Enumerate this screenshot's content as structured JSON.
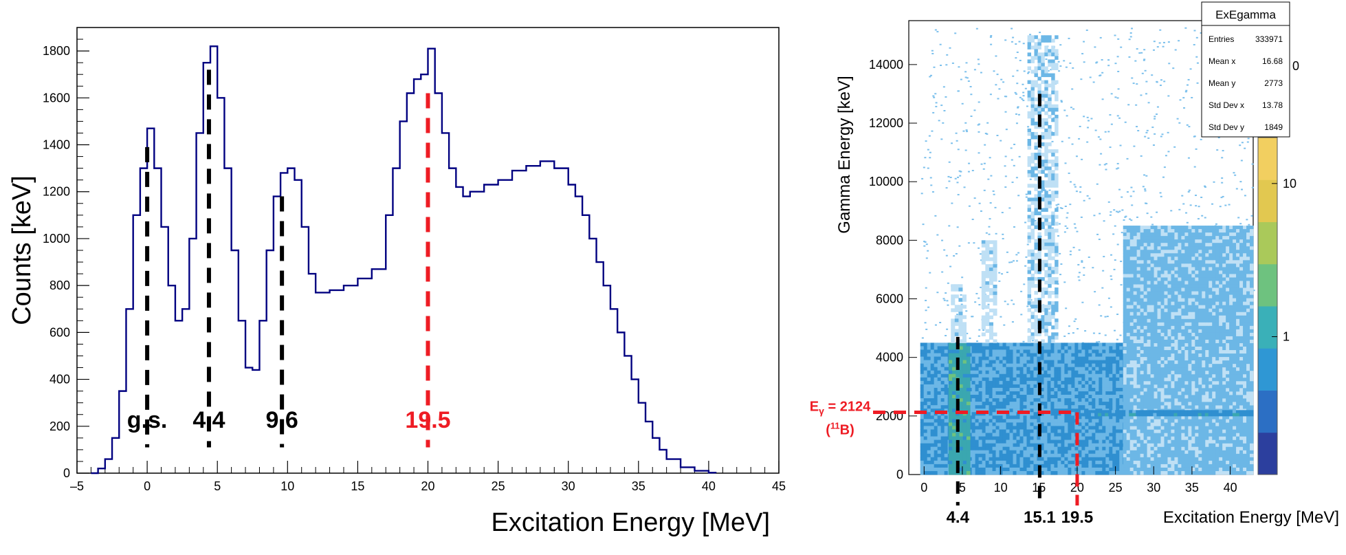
{
  "chart_data": [
    {
      "type": "line",
      "title": "",
      "xlabel": "Excitation Energy [MeV]",
      "ylabel": "Counts [keV]",
      "xlim": [
        -5,
        45
      ],
      "ylim": [
        0,
        1900
      ],
      "xticks": [
        -5,
        0,
        5,
        10,
        15,
        20,
        25,
        30,
        35,
        40,
        45
      ],
      "xtick_labels": [
        "–5",
        "0",
        "5",
        "10",
        "15",
        "20",
        "25",
        "30",
        "35",
        "40",
        "45"
      ],
      "yticks": [
        0,
        200,
        400,
        600,
        800,
        1000,
        1200,
        1400,
        1600,
        1800
      ],
      "grid": false,
      "line_color": "#000080",
      "series": [
        {
          "x": [
            -4.0,
            -3.5,
            -3.0,
            -2.5,
            -2.0,
            -1.5,
            -1.0,
            -0.5,
            0.0,
            0.5,
            1.0,
            1.5,
            2.0,
            2.5,
            3.0,
            3.5,
            4.0,
            4.5,
            5.0,
            5.5,
            6.0,
            6.5,
            7.0,
            7.5,
            8.0,
            8.5,
            9.0,
            9.5,
            10.0,
            10.5,
            11.0,
            11.5,
            12.0,
            13.0,
            14.0,
            15.0,
            16.0,
            17.0,
            17.5,
            18.0,
            18.5,
            19.0,
            19.5,
            20.0,
            20.5,
            21.0,
            21.5,
            22.0,
            22.5,
            23.0,
            24.0,
            25.0,
            26.0,
            27.0,
            28.0,
            29.0,
            30.0,
            30.5,
            31.0,
            31.5,
            32.0,
            32.5,
            33.0,
            33.5,
            34.0,
            34.5,
            35.0,
            35.5,
            36.0,
            36.5,
            37.0,
            38.0,
            39.0,
            40.0,
            40.5
          ],
          "y": [
            0,
            20,
            60,
            150,
            350,
            700,
            1100,
            1300,
            1470,
            1300,
            1050,
            800,
            650,
            700,
            1000,
            1450,
            1750,
            1820,
            1600,
            1300,
            950,
            650,
            450,
            440,
            650,
            950,
            1180,
            1280,
            1300,
            1250,
            1050,
            850,
            770,
            780,
            800,
            830,
            870,
            1100,
            1300,
            1500,
            1620,
            1680,
            1700,
            1810,
            1620,
            1450,
            1300,
            1220,
            1180,
            1200,
            1230,
            1250,
            1290,
            1310,
            1330,
            1300,
            1230,
            1180,
            1100,
            1000,
            900,
            800,
            700,
            600,
            500,
            400,
            300,
            220,
            150,
            100,
            60,
            25,
            10,
            2,
            0
          ]
        }
      ],
      "markers": [
        {
          "x": 0.0,
          "y_top": 1390,
          "label": "g.s.",
          "color": "#000000"
        },
        {
          "x": 4.4,
          "y_top": 1720,
          "label": "4.4",
          "color": "#000000"
        },
        {
          "x": 9.6,
          "y_top": 1180,
          "label": "9.6",
          "color": "#000000"
        },
        {
          "x": 20.0,
          "y_top": 1620,
          "label": "19.5",
          "color": "#ee1c24"
        }
      ]
    },
    {
      "type": "heatmap",
      "title": "",
      "xlabel": "Excitation Energy [MeV]",
      "ylabel": "Gamma Energy [keV]",
      "xlim": [
        -2,
        43
      ],
      "ylim": [
        0,
        15500
      ],
      "xticks": [
        0,
        5,
        10,
        15,
        20,
        25,
        30,
        35,
        40
      ],
      "yticks": [
        0,
        2000,
        4000,
        6000,
        8000,
        10000,
        12000,
        14000
      ],
      "colorbar": {
        "scale": "log",
        "ticks": [
          1,
          10
        ],
        "tick_labels": [
          "1",
          "10"
        ],
        "top_label": "0"
      },
      "stats_box": {
        "title": "ExEgamma",
        "rows": [
          {
            "label": "Entries",
            "value": "333971"
          },
          {
            "label": "Mean x",
            "value": "16.68"
          },
          {
            "label": "Mean y",
            "value": "2773"
          },
          {
            "label": "Std Dev x",
            "value": "13.78"
          },
          {
            "label": "Std Dev y",
            "value": "1849"
          }
        ]
      },
      "v_markers": [
        {
          "x": 4.4,
          "y_top": 4700,
          "label": "4.4",
          "color": "#000000"
        },
        {
          "x": 15.1,
          "y_top": 13000,
          "label": "15.1",
          "color": "#000000"
        },
        {
          "x": 20.0,
          "y_top": 2124,
          "label": "19.5",
          "color": "#ee1c24"
        }
      ],
      "h_marker": {
        "y": 2124,
        "color": "#ee1c24",
        "label_main": "E",
        "label_sub": "γ",
        "label_rest": " = 2124",
        "label_line2_pre": "(",
        "label_line2_sup": "11",
        "label_line2_post": "B)"
      },
      "regions": [
        {
          "x0": -0.5,
          "x1": 43,
          "y0": 0,
          "y1": 4500,
          "level": 2.5
        },
        {
          "x0": 3.2,
          "x1": 6.0,
          "y0": 0,
          "y1": 4500,
          "level": 4.0
        },
        {
          "x0": 26,
          "x1": 43,
          "y0": 0,
          "y1": 8500,
          "level": 1.8
        },
        {
          "x0": 13.5,
          "x1": 17.5,
          "y0": 4500,
          "y1": 15000,
          "level": 1.2
        },
        {
          "x0": 7.5,
          "x1": 9.5,
          "y0": 4500,
          "y1": 8000,
          "level": 1.0
        },
        {
          "x0": 3.5,
          "x1": 5.5,
          "y0": 4500,
          "y1": 6500,
          "level": 1.0
        },
        {
          "x0": 20,
          "x1": 43,
          "y0": 2000,
          "y1": 2200,
          "level": 3.0
        }
      ]
    }
  ]
}
